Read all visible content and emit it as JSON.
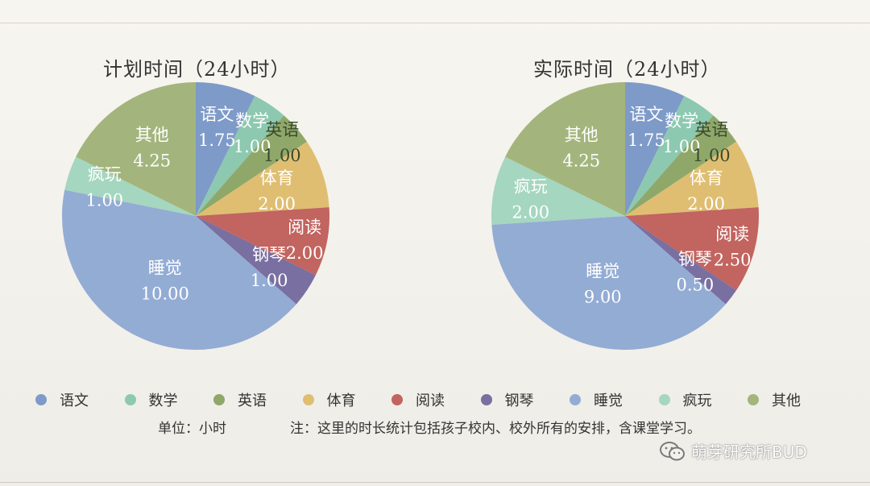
{
  "chart_data": [
    {
      "type": "pie",
      "title": "计划时间（24小时）",
      "slices": [
        {
          "label": "语文",
          "value": 1.75,
          "value_text": "1.75",
          "color": "#7e9ac8"
        },
        {
          "label": "数学",
          "value": 1.0,
          "value_text": "1.00",
          "color": "#8cc9b0"
        },
        {
          "label": "英语",
          "value": 1.0,
          "value_text": "1.00",
          "color": "#8fa86a"
        },
        {
          "label": "体育",
          "value": 2.0,
          "value_text": "2.00",
          "color": "#dfbe72"
        },
        {
          "label": "阅读",
          "value": 2.0,
          "value_text": "2.00",
          "color": "#c2645f"
        },
        {
          "label": "钢琴",
          "value": 1.0,
          "value_text": "1.00",
          "color": "#7a6fa1"
        },
        {
          "label": "睡觉",
          "value": 10.0,
          "value_text": "10.00",
          "color": "#93acd4"
        },
        {
          "label": "疯玩",
          "value": 1.0,
          "value_text": "1.00",
          "color": "#a5d6bf"
        },
        {
          "label": "其他",
          "value": 4.25,
          "value_text": "4.25",
          "color": "#a3b57c"
        }
      ]
    },
    {
      "type": "pie",
      "title": "实际时间（24小时）",
      "slices": [
        {
          "label": "语文",
          "value": 1.75,
          "value_text": "1.75",
          "color": "#7e9ac8"
        },
        {
          "label": "数学",
          "value": 1.0,
          "value_text": "1.00",
          "color": "#8cc9b0"
        },
        {
          "label": "英语",
          "value": 1.0,
          "value_text": "1.00",
          "color": "#8fa86a"
        },
        {
          "label": "体育",
          "value": 2.0,
          "value_text": "2.00",
          "color": "#dfbe72"
        },
        {
          "label": "阅读",
          "value": 2.5,
          "value_text": "2.50",
          "color": "#c2645f"
        },
        {
          "label": "钢琴",
          "value": 0.5,
          "value_text": "0.50",
          "color": "#7a6fa1"
        },
        {
          "label": "睡觉",
          "value": 9.0,
          "value_text": "9.00",
          "color": "#93acd4"
        },
        {
          "label": "疯玩",
          "value": 2.0,
          "value_text": "2.00",
          "color": "#a5d6bf"
        },
        {
          "label": "其他",
          "value": 4.25,
          "value_text": "4.25",
          "color": "#a3b57c"
        }
      ]
    }
  ],
  "legend": {
    "placement": "bottom",
    "items": [
      {
        "label": "语文",
        "color": "#7e9ac8"
      },
      {
        "label": "数学",
        "color": "#8cc9b0"
      },
      {
        "label": "英语",
        "color": "#8fa86a"
      },
      {
        "label": "体育",
        "color": "#dfbe72"
      },
      {
        "label": "阅读",
        "color": "#c2645f"
      },
      {
        "label": "钢琴",
        "color": "#7a6fa1"
      },
      {
        "label": "睡觉",
        "color": "#93acd4"
      },
      {
        "label": "疯玩",
        "color": "#a5d6bf"
      },
      {
        "label": "其他",
        "color": "#a3b57c"
      }
    ]
  },
  "footer": {
    "unit": "单位：小时",
    "note": "注：这里的时长统计包括孩子校内、校外所有的安排，含课堂学习。"
  },
  "watermark": {
    "text": "萌芽研究所BUD",
    "icon": "wechat-icon"
  }
}
